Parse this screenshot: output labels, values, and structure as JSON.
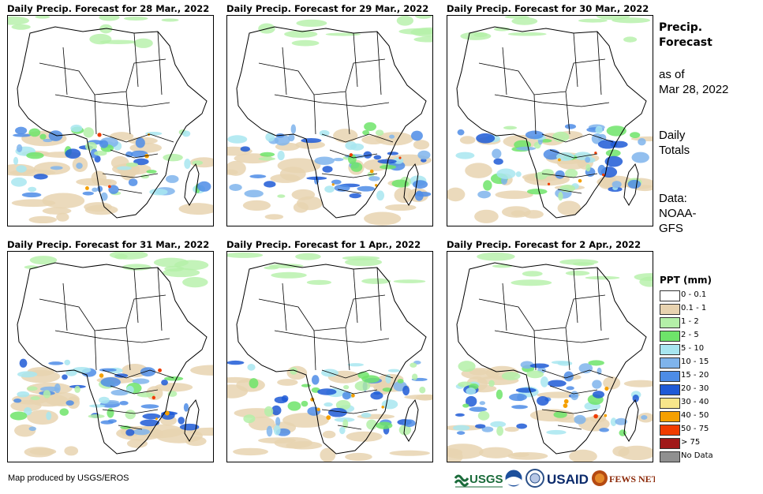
{
  "panels": [
    {
      "title": "Daily Precip. Forecast for 28 Mar., 2022"
    },
    {
      "title": "Daily Precip. Forecast for 29 Mar., 2022"
    },
    {
      "title": "Daily Precip. Forecast for 30 Mar., 2022"
    },
    {
      "title": "Daily Precip. Forecast for 31 Mar., 2022"
    },
    {
      "title": "Daily Precip. Forecast for 1 Apr., 2022"
    },
    {
      "title": "Daily Precip. Forecast for 2 Apr., 2022"
    }
  ],
  "info": {
    "heading_line1": "Precip.",
    "heading_line2": "Forecast",
    "asof_line1": "as of",
    "asof_line2": "Mar 28, 2022",
    "totals_line1": "Daily",
    "totals_line2": "Totals",
    "data_line1": "Data:",
    "data_line2": "NOAA-",
    "data_line3": "GFS"
  },
  "legend": {
    "title": "PPT (mm)",
    "items": [
      {
        "label": "0 - 0.1",
        "color": "#ffffff"
      },
      {
        "label": "0.1 - 1",
        "color": "#e8d3b0"
      },
      {
        "label": "1 - 2",
        "color": "#b4f0a8"
      },
      {
        "label": "2 - 5",
        "color": "#6ee46a"
      },
      {
        "label": "5 - 10",
        "color": "#a8e6f0"
      },
      {
        "label": "10 - 15",
        "color": "#7fb4ec"
      },
      {
        "label": "15 - 20",
        "color": "#4d8ce6"
      },
      {
        "label": "20 - 30",
        "color": "#1f5ad6"
      },
      {
        "label": "30 - 40",
        "color": "#f8e68a"
      },
      {
        "label": "40 - 50",
        "color": "#f5a000"
      },
      {
        "label": "50 - 75",
        "color": "#f03c00"
      },
      {
        "label": "> 75",
        "color": "#a01818"
      },
      {
        "label": "No Data",
        "color": "#909090"
      }
    ]
  },
  "footer": {
    "credit": "Map produced by USGS/EROS"
  },
  "logos": {
    "usgs": "USGS",
    "usaid": "USAID",
    "fewsnet": "FEWS NET"
  }
}
